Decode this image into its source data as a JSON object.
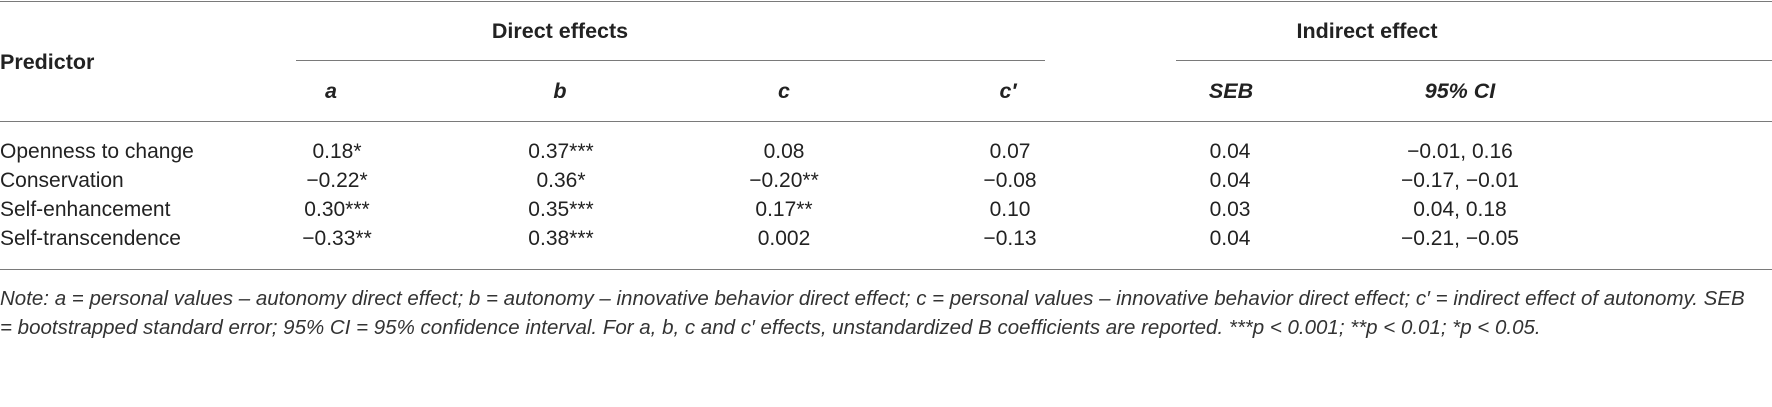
{
  "table": {
    "header": {
      "predictor": "Predictor",
      "direct_effects": "Direct effects",
      "indirect_effect": "Indirect effect",
      "columns": [
        "a",
        "b",
        "c",
        "c′",
        "SEB",
        "95% CI"
      ]
    },
    "rows": [
      {
        "predictor": "Openness to change",
        "a": "0.18*",
        "b": "0.37***",
        "c": "0.08",
        "c_prime": "0.07",
        "seb": "0.04",
        "ci": "−0.01, 0.16"
      },
      {
        "predictor": "Conservation",
        "a": "−0.22*",
        "b": "0.36*",
        "c": "−0.20**",
        "c_prime": "−0.08",
        "seb": "0.04",
        "ci": "−0.17, −0.01"
      },
      {
        "predictor": "Self-enhancement",
        "a": "0.30***",
        "b": "0.35***",
        "c": "0.17**",
        "c_prime": "0.10",
        "seb": "0.03",
        "ci": "0.04, 0.18"
      },
      {
        "predictor": "Self-transcendence",
        "a": "−0.33**",
        "b": "0.38***",
        "c": "0.002",
        "c_prime": "−0.13",
        "seb": "0.04",
        "ci": "−0.21, −0.05"
      }
    ],
    "note": "Note: a = personal values – autonomy direct effect; b = autonomy – innovative behavior direct effect; c = personal values – innovative behavior direct effect; c′ = indirect effect of autonomy. SEB = bootstrapped standard error; 95% CI = 95% confidence interval. For a, b, c and c′ effects, unstandardized B coefficients are reported. ***p < 0.001; **p < 0.01; *p < 0.05."
  }
}
